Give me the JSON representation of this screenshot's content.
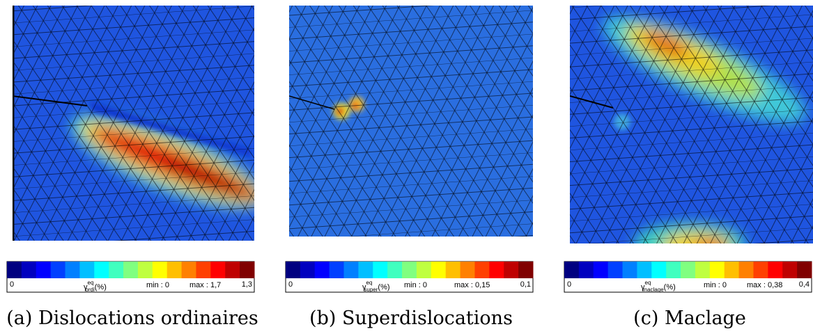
{
  "panels": [
    {
      "colorbar": {
        "min_label": "0",
        "max_label": "1,3",
        "symbol": "γ",
        "superscript": "eq",
        "subscript": "ordi",
        "unit": "(%)",
        "min_text": "min : 0",
        "max_text": "max : 1,7"
      },
      "caption": "(a) Dislocations ordinaires"
    },
    {
      "colorbar": {
        "min_label": "0",
        "max_label": "0,1",
        "symbol": "γ",
        "superscript": "eq",
        "subscript": "super",
        "unit": "(%)",
        "min_text": "min : 0",
        "max_text": "max : 0,15"
      },
      "caption": "(b) Superdislocations"
    },
    {
      "colorbar": {
        "min_label": "0",
        "max_label": "0,4",
        "symbol": "γ",
        "superscript": "eq",
        "subscript": "maclage",
        "unit": "(%)",
        "min_text": "min : 0",
        "max_text": "max : 0,38"
      },
      "caption": "(c) Maclage"
    }
  ]
}
